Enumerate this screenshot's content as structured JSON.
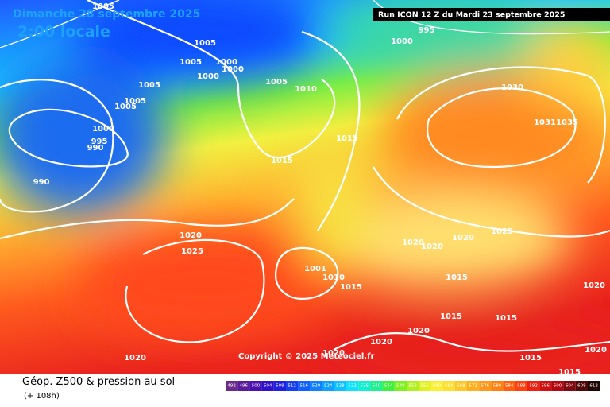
{
  "header": {
    "title": "Dimanche 28 septembre 2025",
    "subtitle": "2:00 locale",
    "run": "Run ICON 12 Z du Mardi 23 septembre 2025"
  },
  "copyright": "Copyright © 2025 Meteociel.fr",
  "legend": {
    "title": "Géop. Z500 & pression au sol",
    "lead": "(+ 108h)",
    "scale": [
      492,
      496,
      500,
      504,
      508,
      512,
      516,
      520,
      524,
      528,
      532,
      536,
      540,
      544,
      548,
      552,
      556,
      560,
      564,
      568,
      572,
      576,
      580,
      584,
      588,
      592,
      596,
      600,
      604,
      608,
      612
    ]
  },
  "isobar_labels": [
    1005,
    995,
    1000,
    1005,
    1005,
    1000,
    1000,
    1000,
    1005,
    1010,
    1030,
    1005,
    1005,
    1005,
    1000,
    995,
    990,
    1015,
    1015,
    1031,
    1035,
    990,
    1020,
    1025,
    1020,
    1020,
    1020,
    1025,
    1001,
    1010,
    1015,
    1015,
    1015,
    1015,
    1020,
    1020,
    1020,
    1020,
    1015,
    1020,
    1015,
    1020
  ]
}
